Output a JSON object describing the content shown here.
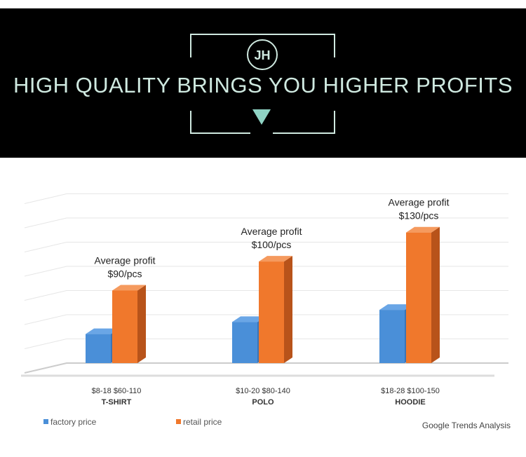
{
  "banner": {
    "logo_text": "JH",
    "title": "HIGH QUALITY BRINGS YOU HIGHER PROFITS",
    "text_color": "#cfe9e0"
  },
  "chart_data": {
    "type": "bar",
    "style": "3d-clustered",
    "categories": [
      "T-SHIRT",
      "POLO",
      "HOODIE"
    ],
    "price_labels": [
      "$8-18  $60-110",
      "$10-20  $80-140",
      "$18-28  $100-150"
    ],
    "series": [
      {
        "name": "factory price",
        "color": "#4a8fd8",
        "values": [
          1.2,
          1.7,
          2.2
        ]
      },
      {
        "name": "retail price",
        "color": "#f0782c",
        "values": [
          3.0,
          4.2,
          5.4
        ]
      }
    ],
    "annotations": [
      {
        "line1": "Average profit",
        "line2": "$90/pcs"
      },
      {
        "line1": "Average profit",
        "line2": "$100/pcs"
      },
      {
        "line1": "Average profit",
        "line2": "$130/pcs"
      }
    ],
    "ylim": [
      0,
      7
    ],
    "grid": true,
    "legend_position": "bottom-left",
    "source": "Google Trends Analysis"
  }
}
